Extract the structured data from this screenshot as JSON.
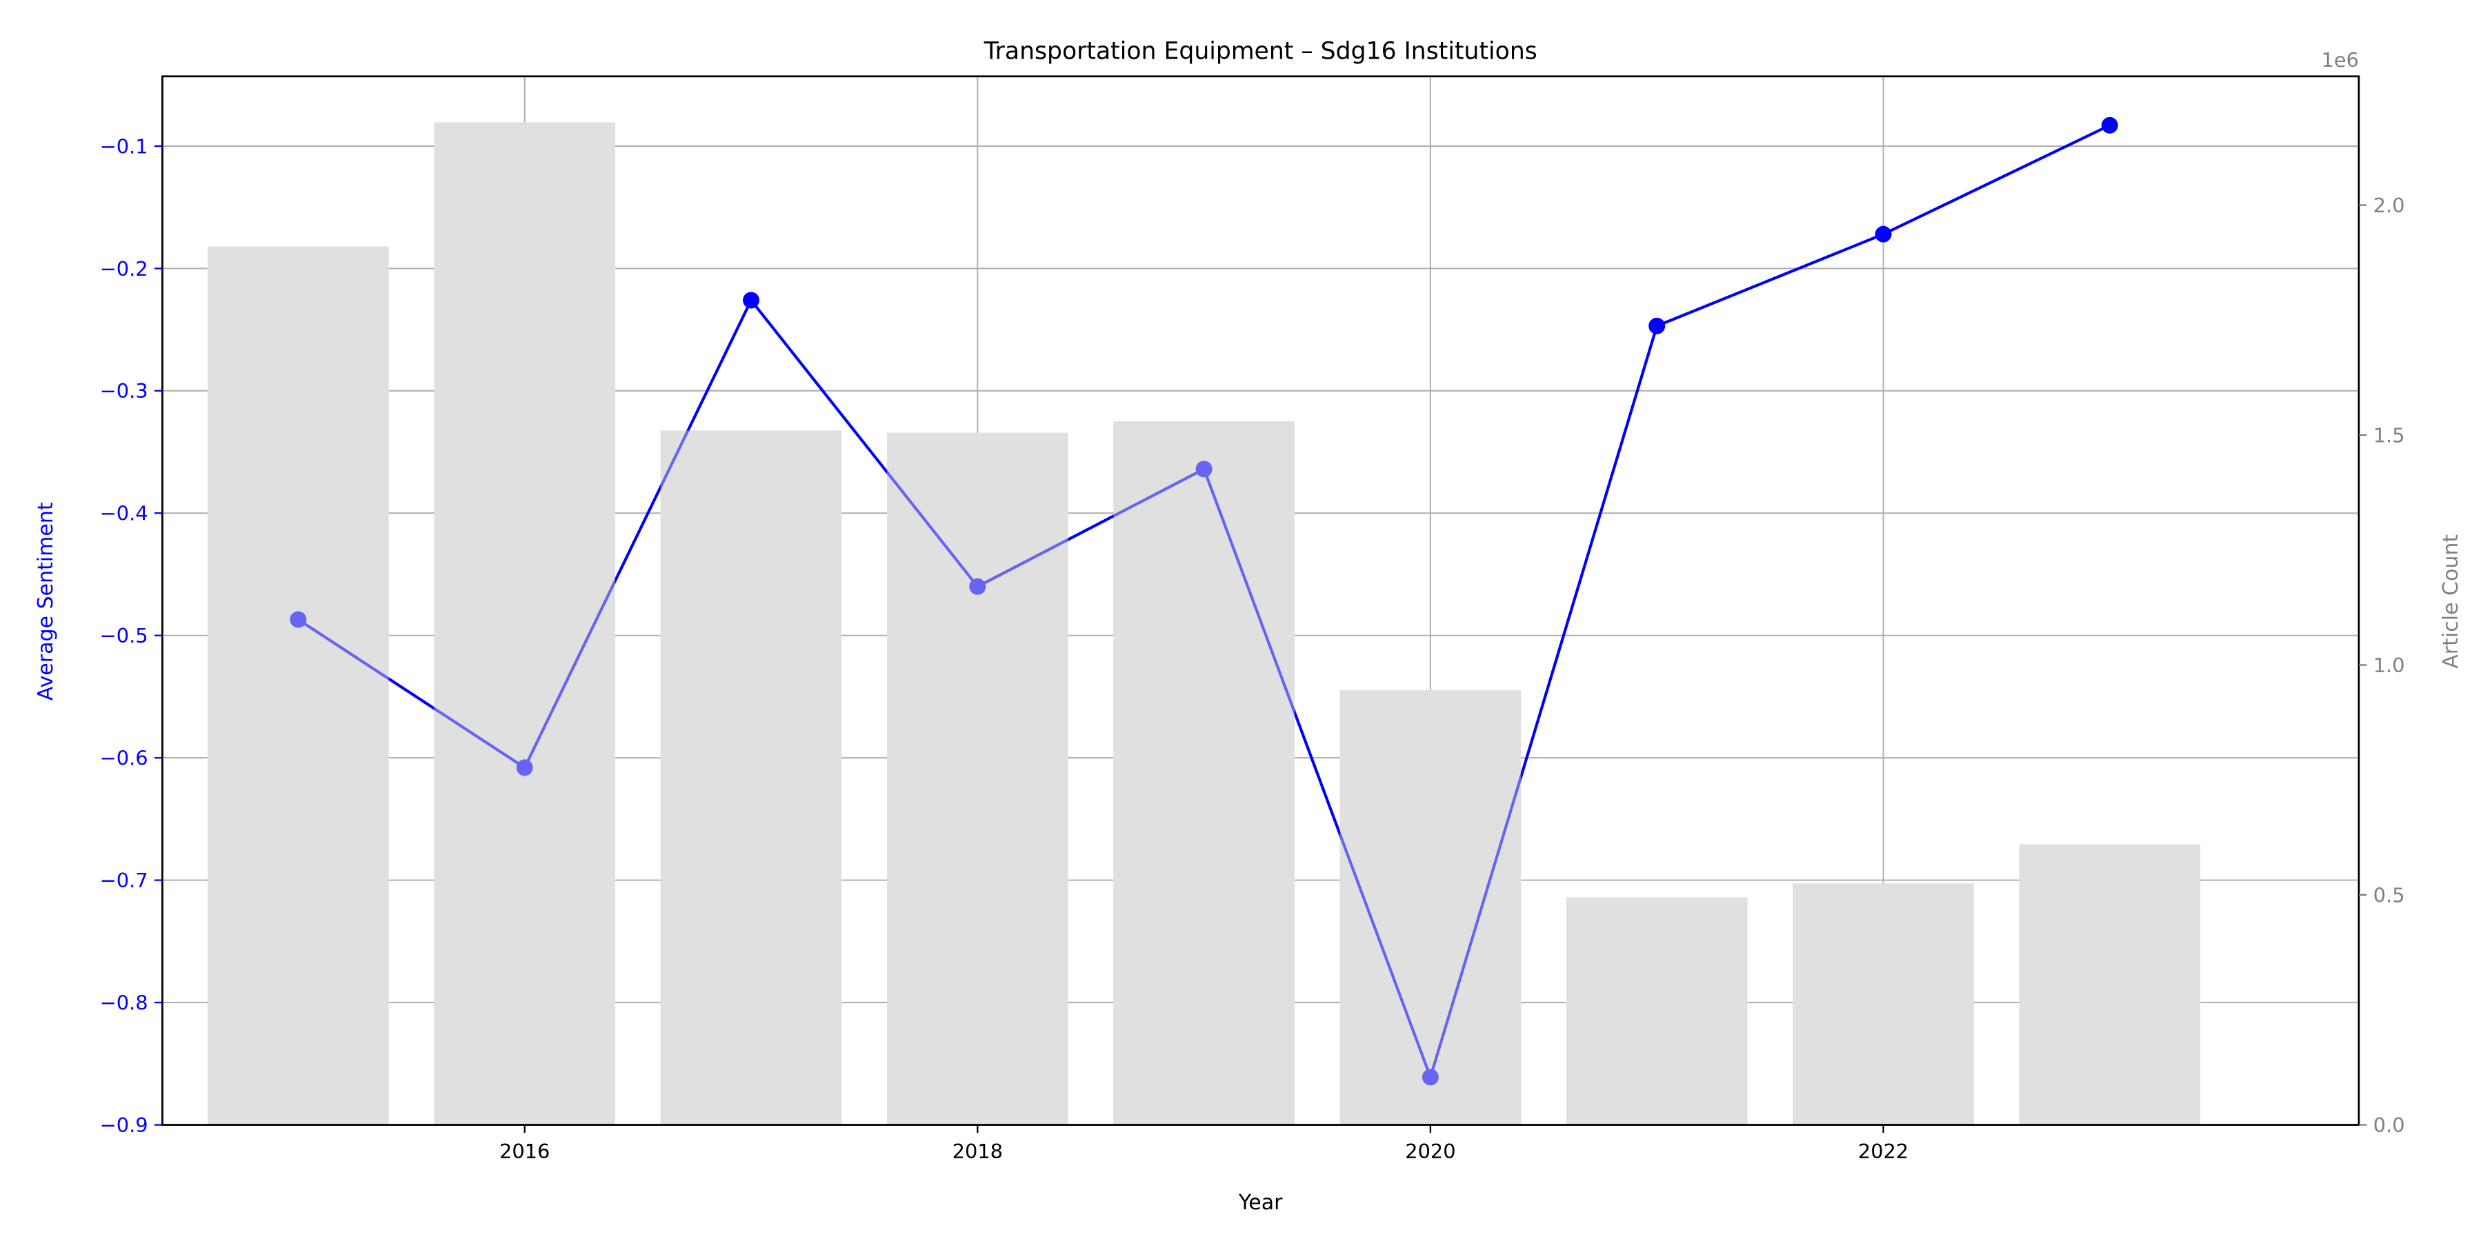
{
  "chart_data": {
    "type": "bar",
    "title": "Transportation Equipment – Sdg16 Institutions",
    "xlabel": "Year",
    "ylabel": "Average Sentiment",
    "y2label": "Article Count",
    "y2_offset_text": "1e6",
    "x": [
      2015,
      2016,
      2017,
      2018,
      2019,
      2020,
      2021,
      2022,
      2023
    ],
    "x_ticks": [
      2016,
      2018,
      2020,
      2022
    ],
    "xlim": [
      2014.4,
      2024.1
    ],
    "ylim": [
      -0.9,
      -0.043
    ],
    "y2lim": [
      0,
      2.28
    ],
    "y_ticks": [
      -0.9,
      -0.8,
      -0.7,
      -0.6,
      -0.5,
      -0.4,
      -0.3,
      -0.2,
      -0.1
    ],
    "y2_ticks": [
      0.0,
      0.5,
      1.0,
      1.5,
      2.0
    ],
    "grid": true,
    "series": [
      {
        "type": "bar",
        "axis": "right",
        "values": [
          1.91,
          2.18,
          1.51,
          1.505,
          1.53,
          0.945,
          0.495,
          0.525,
          0.61
        ],
        "color": "#e0e0e0"
      },
      {
        "type": "line",
        "axis": "left",
        "values": [
          -0.487,
          -0.608,
          -0.226,
          -0.46,
          -0.364,
          -0.861,
          -0.247,
          -0.172,
          -0.083
        ],
        "color": "#0000ff"
      }
    ],
    "colors": {
      "left_axis": "#0000ff",
      "right_axis": "#808080",
      "bar": "#e0e0e0",
      "line": "#0000ff"
    }
  }
}
